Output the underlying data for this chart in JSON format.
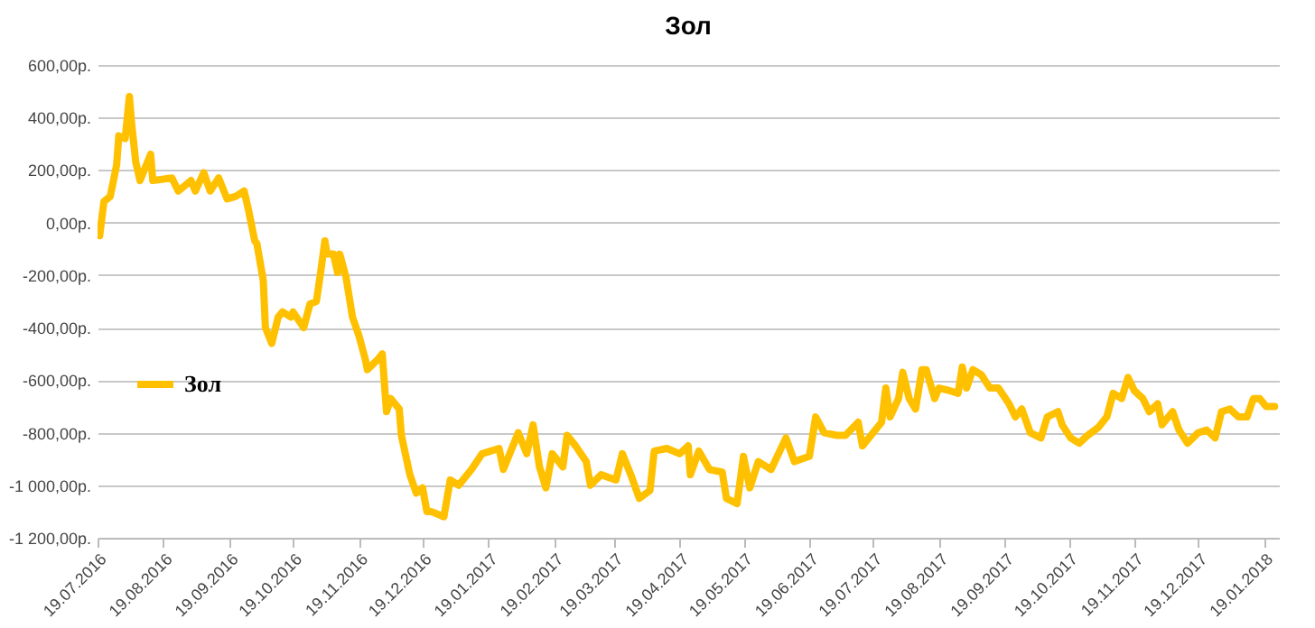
{
  "chart_data": {
    "type": "line",
    "title": "Зол",
    "legend": "left",
    "grid": "y",
    "line_style": "solid",
    "marker": "none",
    "xlim": [
      "2016-07-19",
      "2018-01-26"
    ],
    "xticks": [
      {
        "value": "2016-07-19",
        "label": "19.07.2016"
      },
      {
        "value": "2016-08-19",
        "label": "19.08.2016"
      },
      {
        "value": "2016-09-19",
        "label": "19.09.2016"
      },
      {
        "value": "2016-10-19",
        "label": "19.10.2016"
      },
      {
        "value": "2016-11-19",
        "label": "19.11.2016"
      },
      {
        "value": "2016-12-19",
        "label": "19.12.2016"
      },
      {
        "value": "2017-01-19",
        "label": "19.01.2017"
      },
      {
        "value": "2017-02-19",
        "label": "19.02.2017"
      },
      {
        "value": "2017-03-19",
        "label": "19.03.2017"
      },
      {
        "value": "2017-04-19",
        "label": "19.04.2017"
      },
      {
        "value": "2017-05-19",
        "label": "19.05.2017"
      },
      {
        "value": "2017-06-19",
        "label": "19.06.2017"
      },
      {
        "value": "2017-07-19",
        "label": "19.07.2017"
      },
      {
        "value": "2017-08-19",
        "label": "19.08.2017"
      },
      {
        "value": "2017-09-19",
        "label": "19.09.2017"
      },
      {
        "value": "2017-10-19",
        "label": "19.10.2017"
      },
      {
        "value": "2017-11-19",
        "label": "19.11.2017"
      },
      {
        "value": "2017-12-19",
        "label": "19.12.2017"
      },
      {
        "value": "2018-01-19",
        "label": "19.01.2018"
      }
    ],
    "ylim": [
      -1200,
      600
    ],
    "yticks": [
      {
        "value": -1200,
        "label": "-1 200,00р."
      },
      {
        "value": -1000,
        "label": "-1 000,00р."
      },
      {
        "value": -800,
        "label": "-800,00р."
      },
      {
        "value": -600,
        "label": "-600,00р."
      },
      {
        "value": -400,
        "label": "-400,00р."
      },
      {
        "value": -200,
        "label": "-200,00р."
      },
      {
        "value": 0,
        "label": "0,00р."
      },
      {
        "value": 200,
        "label": "200,00р."
      },
      {
        "value": 400,
        "label": "400,00р."
      },
      {
        "value": 600,
        "label": "600,00р."
      }
    ],
    "x": [
      "2016-07-20",
      "2016-07-22",
      "2016-07-25",
      "2016-07-28",
      "2016-07-29",
      "2016-08-01",
      "2016-08-03",
      "2016-08-04",
      "2016-08-06",
      "2016-08-08",
      "2016-08-11",
      "2016-08-13",
      "2016-08-14",
      "2016-08-23",
      "2016-08-26",
      "2016-09-01",
      "2016-09-03",
      "2016-09-07",
      "2016-09-10",
      "2016-09-14",
      "2016-09-18",
      "2016-09-22",
      "2016-09-26",
      "2016-09-28",
      "2016-10-01",
      "2016-10-02",
      "2016-10-05",
      "2016-10-06",
      "2016-10-09",
      "2016-10-12",
      "2016-10-14",
      "2016-10-18",
      "2016-10-19",
      "2016-10-24",
      "2016-10-27",
      "2016-10-30",
      "2016-11-01",
      "2016-11-03",
      "2016-11-04",
      "2016-11-07",
      "2016-11-09",
      "2016-11-10",
      "2016-11-13",
      "2016-11-16",
      "2016-11-19",
      "2016-11-22",
      "2016-11-23",
      "2016-11-28",
      "2016-11-30",
      "2016-12-02",
      "2016-12-04",
      "2016-12-08",
      "2016-12-09",
      "2016-12-13",
      "2016-12-16",
      "2016-12-19",
      "2016-12-21",
      "2016-12-23",
      "2016-12-29",
      "2017-01-01",
      "2017-01-05",
      "2017-01-11",
      "2017-01-16",
      "2017-01-24",
      "2017-01-26",
      "2017-01-31",
      "2017-02-02",
      "2017-02-06",
      "2017-02-09",
      "2017-02-12",
      "2017-02-15",
      "2017-02-18",
      "2017-02-23",
      "2017-02-25",
      "2017-03-01",
      "2017-03-06",
      "2017-03-08",
      "2017-03-13",
      "2017-03-20",
      "2017-03-23",
      "2017-03-27",
      "2017-03-31",
      "2017-04-05",
      "2017-04-07",
      "2017-04-13",
      "2017-04-19",
      "2017-04-23",
      "2017-04-24",
      "2017-04-28",
      "2017-05-03",
      "2017-05-09",
      "2017-05-11",
      "2017-05-16",
      "2017-05-19",
      "2017-05-22",
      "2017-05-26",
      "2017-06-01",
      "2017-06-08",
      "2017-06-12",
      "2017-06-19",
      "2017-06-22",
      "2017-06-26",
      "2017-07-02",
      "2017-07-06",
      "2017-07-12",
      "2017-07-14",
      "2017-07-20",
      "2017-07-23",
      "2017-07-25",
      "2017-07-27",
      "2017-07-31",
      "2017-08-02",
      "2017-08-05",
      "2017-08-08",
      "2017-08-11",
      "2017-08-13",
      "2017-08-17",
      "2017-08-19",
      "2017-08-24",
      "2017-08-28",
      "2017-08-30",
      "2017-09-01",
      "2017-09-04",
      "2017-09-08",
      "2017-09-12",
      "2017-09-16",
      "2017-09-21",
      "2017-09-24",
      "2017-09-27",
      "2017-10-01",
      "2017-10-06",
      "2017-10-09",
      "2017-10-14",
      "2017-10-16",
      "2017-10-20",
      "2017-10-24",
      "2017-10-28",
      "2017-11-02",
      "2017-11-06",
      "2017-11-09",
      "2017-11-13",
      "2017-11-16",
      "2017-11-19",
      "2017-11-23",
      "2017-11-26",
      "2017-11-30",
      "2017-12-02",
      "2017-12-07",
      "2017-12-10",
      "2017-12-14",
      "2017-12-19",
      "2017-12-23",
      "2017-12-27",
      "2017-12-30",
      "2018-01-03",
      "2018-01-07",
      "2018-01-11",
      "2018-01-14",
      "2018-01-17",
      "2018-01-20",
      "2018-01-24"
    ],
    "series": [
      {
        "name": "Зол",
        "color": "#ffc000",
        "values": [
          -50,
          80,
          100,
          220,
          330,
          320,
          480,
          380,
          230,
          160,
          220,
          260,
          160,
          170,
          120,
          160,
          120,
          190,
          120,
          170,
          90,
          100,
          120,
          50,
          -70,
          -80,
          -220,
          -400,
          -460,
          -360,
          -340,
          -360,
          -340,
          -400,
          -310,
          -300,
          -190,
          -70,
          -120,
          -120,
          -190,
          -120,
          -210,
          -360,
          -430,
          -520,
          -560,
          -520,
          -500,
          -720,
          -670,
          -710,
          -810,
          -960,
          -1030,
          -1010,
          -1100,
          -1100,
          -1120,
          -980,
          -1000,
          -940,
          -880,
          -860,
          -940,
          -840,
          -800,
          -880,
          -770,
          -930,
          -1010,
          -880,
          -930,
          -810,
          -850,
          -910,
          -1000,
          -960,
          -980,
          -880,
          -960,
          -1050,
          -1020,
          -870,
          -860,
          -880,
          -850,
          -960,
          -870,
          -940,
          -950,
          -1050,
          -1070,
          -890,
          -1010,
          -910,
          -940,
          -820,
          -910,
          -890,
          -740,
          -800,
          -810,
          -810,
          -760,
          -850,
          -790,
          -760,
          -630,
          -740,
          -670,
          -570,
          -670,
          -710,
          -560,
          -560,
          -670,
          -630,
          -640,
          -650,
          -550,
          -630,
          -560,
          -580,
          -630,
          -630,
          -690,
          -740,
          -710,
          -800,
          -820,
          -740,
          -720,
          -770,
          -820,
          -840,
          -810,
          -780,
          -740,
          -650,
          -670,
          -590,
          -640,
          -670,
          -720,
          -690,
          -770,
          -720,
          -790,
          -840,
          -800,
          -790,
          -820,
          -720,
          -710,
          -740,
          -740,
          -670,
          -670,
          -700,
          -700
        ]
      }
    ]
  }
}
